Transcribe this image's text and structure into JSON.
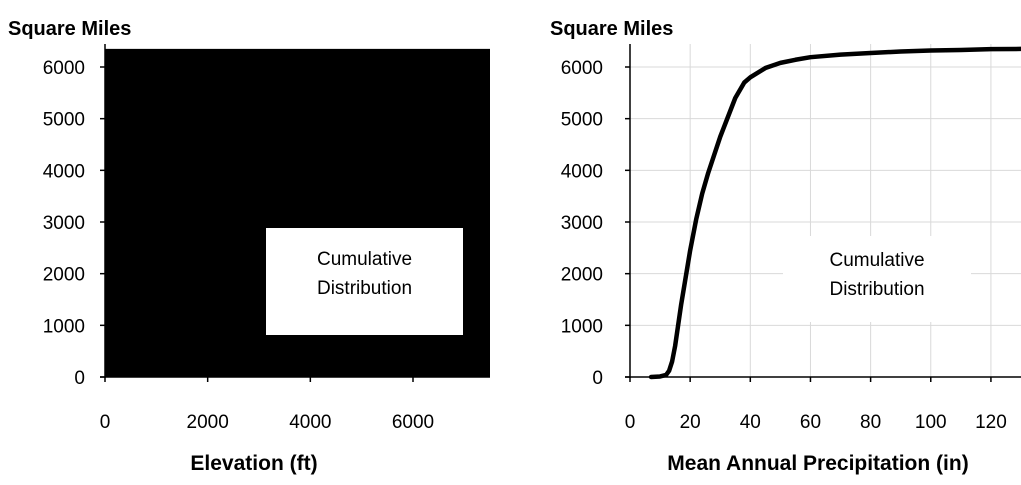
{
  "chart_data": [
    {
      "type": "area",
      "title": "",
      "ylabel": "Square Miles",
      "xlabel": "Elevation (ft)",
      "xlim": [
        0,
        7500
      ],
      "ylim": [
        0,
        6000
      ],
      "x_ticks": [
        "0",
        "2000",
        "4000",
        "6000"
      ],
      "y_ticks": [
        "0",
        "1000",
        "2000",
        "3000",
        "4000",
        "5000",
        "6000"
      ],
      "annotation": [
        "Cumulative",
        "Distribution"
      ],
      "fill_color": "#000000",
      "grid": false,
      "series": [
        {
          "x": [
            0,
            7500
          ],
          "y": [
            6350,
            6350
          ]
        }
      ]
    },
    {
      "type": "line",
      "title": "",
      "ylabel": "Square Miles",
      "xlabel": "Mean Annual Precipitation (in)",
      "xlim": [
        0,
        130
      ],
      "ylim": [
        0,
        6000
      ],
      "x_ticks": [
        "0",
        "20",
        "40",
        "60",
        "80",
        "100",
        "120"
      ],
      "y_ticks": [
        "0",
        "1000",
        "2000",
        "3000",
        "4000",
        "5000",
        "6000"
      ],
      "annotation": [
        "Cumulative",
        "Distribution"
      ],
      "line_color": "#000000",
      "grid": true,
      "series": [
        {
          "x": [
            7,
            10,
            12,
            13,
            14,
            15,
            16,
            17,
            18,
            19,
            20,
            22,
            24,
            26,
            28,
            30,
            32,
            35,
            38,
            40,
            45,
            50,
            55,
            60,
            70,
            80,
            90,
            100,
            110,
            120,
            130
          ],
          "y": [
            0,
            10,
            40,
            120,
            300,
            600,
            1000,
            1400,
            1750,
            2100,
            2450,
            3050,
            3550,
            3950,
            4300,
            4650,
            4950,
            5400,
            5700,
            5800,
            5980,
            6080,
            6140,
            6190,
            6240,
            6270,
            6300,
            6320,
            6330,
            6345,
            6350
          ]
        }
      ]
    }
  ]
}
